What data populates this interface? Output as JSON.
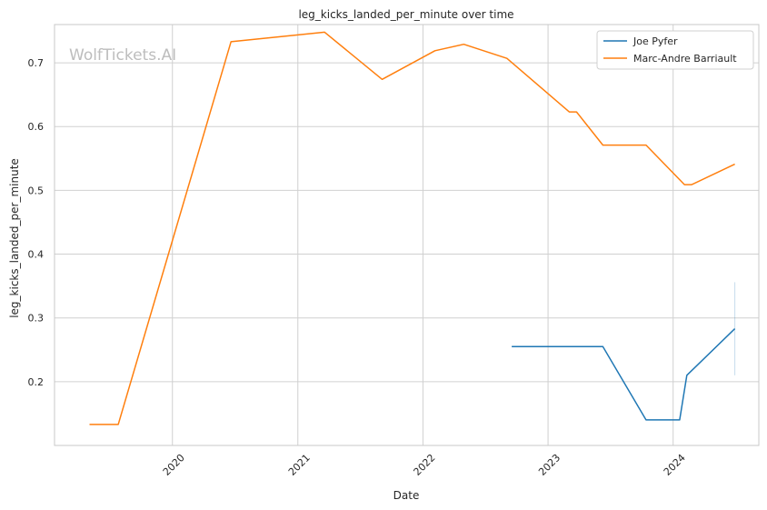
{
  "chart_data": {
    "type": "line",
    "title": "leg_kicks_landed_per_minute over time",
    "xlabel": "Date",
    "ylabel": "leg_kicks_landed_per_minute",
    "watermark": "WolfTickets.AI",
    "xlim": [
      "2019-01-22",
      "2024-09-07"
    ],
    "ylim": [
      0.1,
      0.76
    ],
    "x_ticks": [
      "2020",
      "2021",
      "2022",
      "2023",
      "2024"
    ],
    "y_ticks": [
      "0.2",
      "0.3",
      "0.4",
      "0.5",
      "0.6",
      "0.7"
    ],
    "y_tick_values": [
      0.2,
      0.3,
      0.4,
      0.5,
      0.6,
      0.7
    ],
    "grid": true,
    "legend_position": "top-right",
    "series": [
      {
        "name": "Joe Pyfer",
        "color": "#1f77b4",
        "points": [
          [
            "2022-09-17",
            0.255
          ],
          [
            "2023-06-10",
            0.255
          ],
          [
            "2023-10-14",
            0.14
          ],
          [
            "2024-01-20",
            0.14
          ],
          [
            "2024-02-10",
            0.21
          ],
          [
            "2024-06-29",
            0.283
          ]
        ],
        "error_bar": {
          "x": "2024-06-29",
          "low": 0.21,
          "high": 0.356
        }
      },
      {
        "name": "Marc-Andre Barriault",
        "color": "#ff7f0e",
        "points": [
          [
            "2019-05-04",
            0.133
          ],
          [
            "2019-07-27",
            0.133
          ],
          [
            "2020-06-20",
            0.733
          ],
          [
            "2021-03-20",
            0.748
          ],
          [
            "2021-09-04",
            0.674
          ],
          [
            "2022-02-05",
            0.719
          ],
          [
            "2022-04-30",
            0.729
          ],
          [
            "2022-09-03",
            0.707
          ],
          [
            "2023-03-04",
            0.623
          ],
          [
            "2023-03-25",
            0.623
          ],
          [
            "2023-06-10",
            0.571
          ],
          [
            "2023-10-14",
            0.571
          ],
          [
            "2024-02-03",
            0.509
          ],
          [
            "2024-02-24",
            0.509
          ],
          [
            "2024-06-29",
            0.541
          ]
        ]
      }
    ]
  }
}
